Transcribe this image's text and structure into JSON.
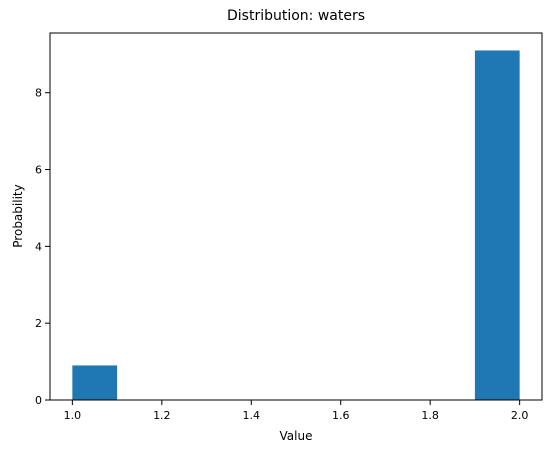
{
  "chart_data": {
    "type": "bar",
    "title": "Distribution: waters",
    "xlabel": "Value",
    "ylabel": "Probability",
    "bins": [
      {
        "start": 1.0,
        "end": 1.1,
        "value": 0.9
      },
      {
        "start": 1.1,
        "end": 1.2,
        "value": 0
      },
      {
        "start": 1.2,
        "end": 1.3,
        "value": 0
      },
      {
        "start": 1.3,
        "end": 1.4,
        "value": 0
      },
      {
        "start": 1.4,
        "end": 1.5,
        "value": 0
      },
      {
        "start": 1.5,
        "end": 1.6,
        "value": 0
      },
      {
        "start": 1.6,
        "end": 1.7,
        "value": 0
      },
      {
        "start": 1.7,
        "end": 1.8,
        "value": 0
      },
      {
        "start": 1.8,
        "end": 1.9,
        "value": 0
      },
      {
        "start": 1.9,
        "end": 2.0,
        "value": 9.1
      }
    ],
    "xlim": [
      0.95,
      2.05
    ],
    "ylim": [
      0,
      9.555
    ],
    "xticks": [
      1.0,
      1.2,
      1.4,
      1.6,
      1.8,
      2.0
    ],
    "xtick_labels": [
      "1.0",
      "1.2",
      "1.4",
      "1.6",
      "1.8",
      "2.0"
    ],
    "yticks": [
      0,
      2,
      4,
      6,
      8
    ],
    "ytick_labels": [
      "0",
      "2",
      "4",
      "6",
      "8"
    ],
    "grid": false,
    "bar_color": "#1f77b4"
  }
}
